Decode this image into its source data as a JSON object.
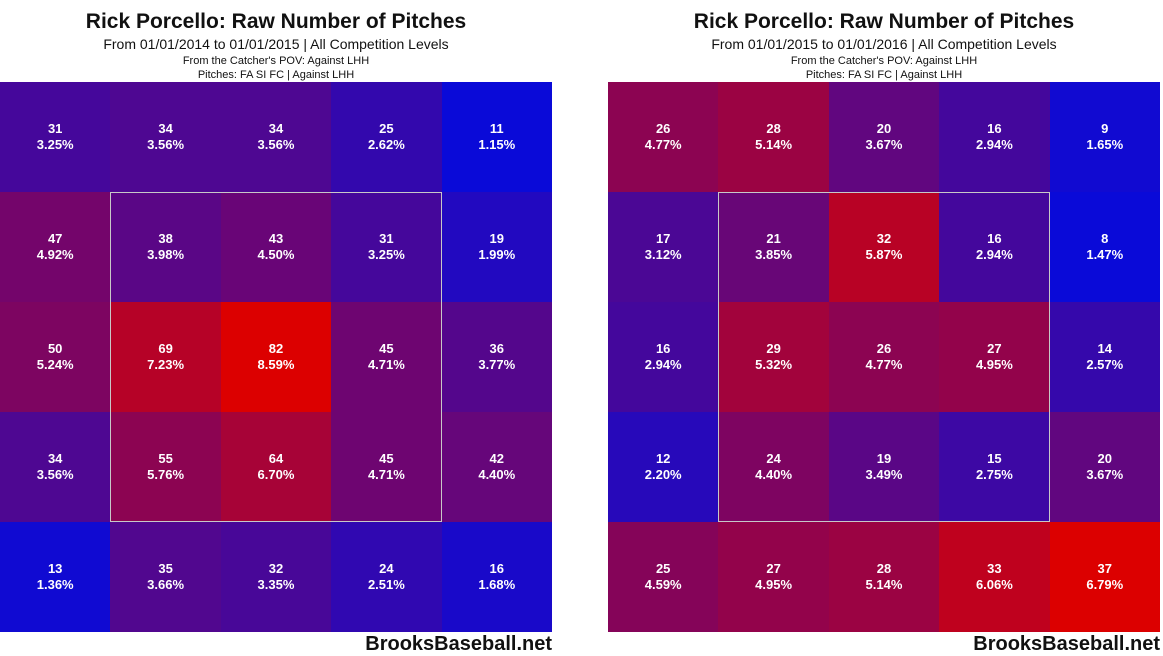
{
  "chart_data": [
    {
      "type": "heatmap",
      "title": "Rick Porcello: Raw Number of Pitches",
      "subtitle": "From 01/01/2014 to 01/01/2015 | All Competition Levels",
      "pov_line1": "From the Catcher's POV:   Against LHH",
      "pov_line2": "Pitches:  FA  SI  FC  |  Against LHH",
      "watermark": "BrooksBaseball.net",
      "rows": [
        [
          {
            "count": "31",
            "pct": "3.25%"
          },
          {
            "count": "34",
            "pct": "3.56%"
          },
          {
            "count": "34",
            "pct": "3.56%"
          },
          {
            "count": "25",
            "pct": "2.62%"
          },
          {
            "count": "11",
            "pct": "1.15%"
          }
        ],
        [
          {
            "count": "47",
            "pct": "4.92%"
          },
          {
            "count": "38",
            "pct": "3.98%"
          },
          {
            "count": "43",
            "pct": "4.50%"
          },
          {
            "count": "31",
            "pct": "3.25%"
          },
          {
            "count": "19",
            "pct": "1.99%"
          }
        ],
        [
          {
            "count": "50",
            "pct": "5.24%"
          },
          {
            "count": "69",
            "pct": "7.23%"
          },
          {
            "count": "82",
            "pct": "8.59%"
          },
          {
            "count": "45",
            "pct": "4.71%"
          },
          {
            "count": "36",
            "pct": "3.77%"
          }
        ],
        [
          {
            "count": "34",
            "pct": "3.56%"
          },
          {
            "count": "55",
            "pct": "5.76%"
          },
          {
            "count": "64",
            "pct": "6.70%"
          },
          {
            "count": "45",
            "pct": "4.71%"
          },
          {
            "count": "42",
            "pct": "4.40%"
          }
        ],
        [
          {
            "count": "13",
            "pct": "1.36%"
          },
          {
            "count": "35",
            "pct": "3.66%"
          },
          {
            "count": "32",
            "pct": "3.35%"
          },
          {
            "count": "24",
            "pct": "2.51%"
          },
          {
            "count": "16",
            "pct": "1.68%"
          }
        ]
      ]
    },
    {
      "type": "heatmap",
      "title": "Rick Porcello: Raw Number of Pitches",
      "subtitle": "From 01/01/2015 to 01/01/2016 | All Competition Levels",
      "pov_line1": "From the Catcher's POV:   Against LHH",
      "pov_line2": "Pitches:  FA  SI  FC  |  Against LHH",
      "watermark": "BrooksBaseball.net",
      "rows": [
        [
          {
            "count": "26",
            "pct": "4.77%"
          },
          {
            "count": "28",
            "pct": "5.14%"
          },
          {
            "count": "20",
            "pct": "3.67%"
          },
          {
            "count": "16",
            "pct": "2.94%"
          },
          {
            "count": "9",
            "pct": "1.65%"
          }
        ],
        [
          {
            "count": "17",
            "pct": "3.12%"
          },
          {
            "count": "21",
            "pct": "3.85%"
          },
          {
            "count": "32",
            "pct": "5.87%"
          },
          {
            "count": "16",
            "pct": "2.94%"
          },
          {
            "count": "8",
            "pct": "1.47%"
          }
        ],
        [
          {
            "count": "16",
            "pct": "2.94%"
          },
          {
            "count": "29",
            "pct": "5.32%"
          },
          {
            "count": "26",
            "pct": "4.77%"
          },
          {
            "count": "27",
            "pct": "4.95%"
          },
          {
            "count": "14",
            "pct": "2.57%"
          }
        ],
        [
          {
            "count": "12",
            "pct": "2.20%"
          },
          {
            "count": "24",
            "pct": "4.40%"
          },
          {
            "count": "19",
            "pct": "3.49%"
          },
          {
            "count": "15",
            "pct": "2.75%"
          },
          {
            "count": "20",
            "pct": "3.67%"
          }
        ],
        [
          {
            "count": "25",
            "pct": "4.59%"
          },
          {
            "count": "27",
            "pct": "4.95%"
          },
          {
            "count": "28",
            "pct": "5.14%"
          },
          {
            "count": "33",
            "pct": "6.06%"
          },
          {
            "count": "37",
            "pct": "6.79%"
          }
        ]
      ]
    }
  ],
  "colors": {
    "low": "#0a0ad8",
    "high": "#dc0000"
  }
}
